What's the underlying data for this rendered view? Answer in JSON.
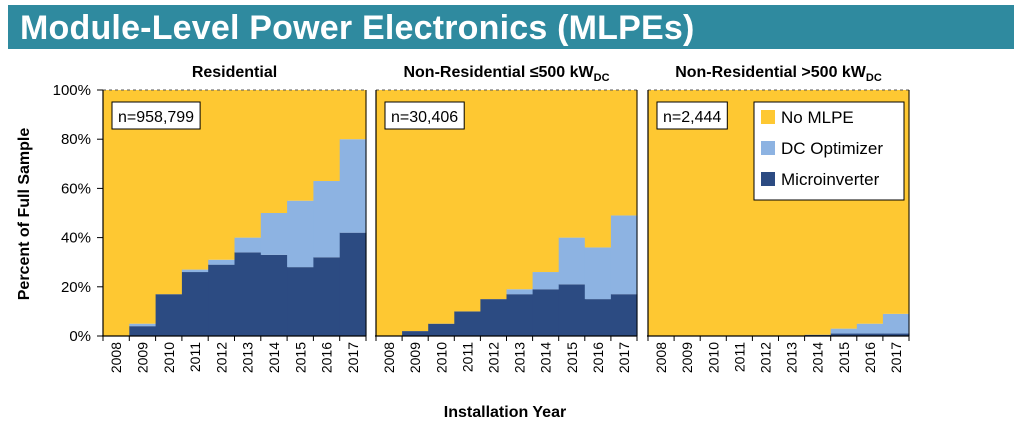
{
  "header": {
    "title": "Module-Level Power Electronics (MLPEs)"
  },
  "colors": {
    "no_mlpe": "#fec832",
    "dc_optimizer": "#8db3e2",
    "microinverter": "#2c4b82",
    "title_bar": "#2f8a9f"
  },
  "chart_data": {
    "type": "area",
    "xlabel": "Installation Year",
    "ylabel": "Percent of Full Sample",
    "ylim": [
      0,
      100
    ],
    "y_ticks": [
      "0%",
      "20%",
      "40%",
      "60%",
      "80%",
      "100%"
    ],
    "categories": [
      "2008",
      "2009",
      "2010",
      "2011",
      "2012",
      "2013",
      "2014",
      "2015",
      "2016",
      "2017"
    ],
    "legend": {
      "placement": "top-right of third panel",
      "entries": [
        "No MLPE",
        "DC Optimizer",
        "Microinverter"
      ]
    },
    "panels": [
      {
        "title": "Residential",
        "sample_label": "n=958,799",
        "series": [
          {
            "name": "Microinverter",
            "values": [
              0,
              4,
              17,
              26,
              29,
              34,
              33,
              28,
              32,
              42
            ]
          },
          {
            "name": "DC Optimizer",
            "values": [
              0,
              1,
              0,
              1,
              2,
              6,
              17,
              27,
              31,
              38
            ]
          },
          {
            "name": "No MLPE",
            "values": [
              100,
              95,
              83,
              73,
              69,
              60,
              50,
              45,
              37,
              20
            ]
          }
        ]
      },
      {
        "title": "Non-Residential ≤500 kW",
        "title_sub": "DC",
        "sample_label": "n=30,406",
        "series": [
          {
            "name": "Microinverter",
            "values": [
              0,
              2,
              5,
              10,
              15,
              17,
              19,
              21,
              15,
              17
            ]
          },
          {
            "name": "DC Optimizer",
            "values": [
              0,
              0,
              0,
              0,
              0,
              2,
              7,
              19,
              21,
              32
            ]
          },
          {
            "name": "No MLPE",
            "values": [
              100,
              98,
              95,
              90,
              85,
              81,
              74,
              60,
              64,
              51
            ]
          }
        ]
      },
      {
        "title": "Non-Residential >500 kW",
        "title_sub": "DC",
        "sample_label": "n=2,444",
        "series": [
          {
            "name": "Microinverter",
            "values": [
              0,
              0,
              0,
              0,
              0,
              0,
              0.5,
              1,
              1,
              1
            ]
          },
          {
            "name": "DC Optimizer",
            "values": [
              0,
              0,
              0,
              0,
              0,
              0,
              0,
              2,
              4,
              8
            ]
          },
          {
            "name": "No MLPE",
            "values": [
              100,
              100,
              100,
              100,
              100,
              100,
              99.5,
              97,
              95,
              91
            ]
          }
        ]
      }
    ]
  }
}
